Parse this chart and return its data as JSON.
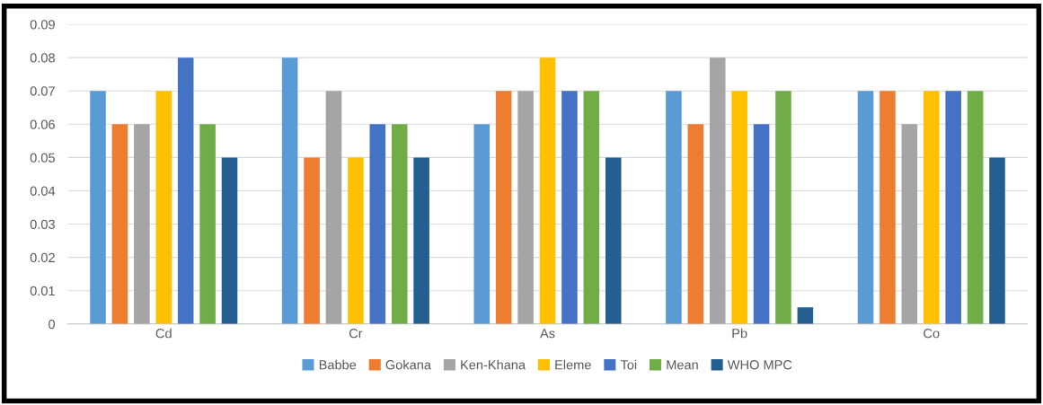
{
  "chart_data": {
    "type": "bar",
    "categories": [
      "Cd",
      "Cr",
      "As",
      "Pb",
      "Co"
    ],
    "series": [
      {
        "name": "Babbe",
        "color": "#5b9bd5",
        "values": [
          0.07,
          0.08,
          0.06,
          0.07,
          0.07
        ]
      },
      {
        "name": "Gokana",
        "color": "#ed7d31",
        "values": [
          0.06,
          0.05,
          0.07,
          0.06,
          0.07
        ]
      },
      {
        "name": "Ken-Khana",
        "color": "#a5a5a5",
        "values": [
          0.06,
          0.07,
          0.07,
          0.08,
          0.06
        ]
      },
      {
        "name": "Eleme",
        "color": "#ffc000",
        "values": [
          0.07,
          0.05,
          0.08,
          0.07,
          0.07
        ]
      },
      {
        "name": "Toi",
        "color": "#4472c4",
        "values": [
          0.08,
          0.06,
          0.07,
          0.06,
          0.07
        ]
      },
      {
        "name": "Mean",
        "color": "#70ad47",
        "values": [
          0.06,
          0.06,
          0.07,
          0.07,
          0.07
        ]
      },
      {
        "name": "WHO MPC",
        "color": "#255e91",
        "values": [
          0.05,
          0.05,
          0.05,
          0.005,
          0.05
        ]
      }
    ],
    "ylim": [
      0,
      0.09
    ],
    "yticks": [
      0,
      0.01,
      0.02,
      0.03,
      0.04,
      0.05,
      0.06,
      0.07,
      0.08,
      0.09
    ],
    "grid": "y",
    "legend": "bottom"
  }
}
